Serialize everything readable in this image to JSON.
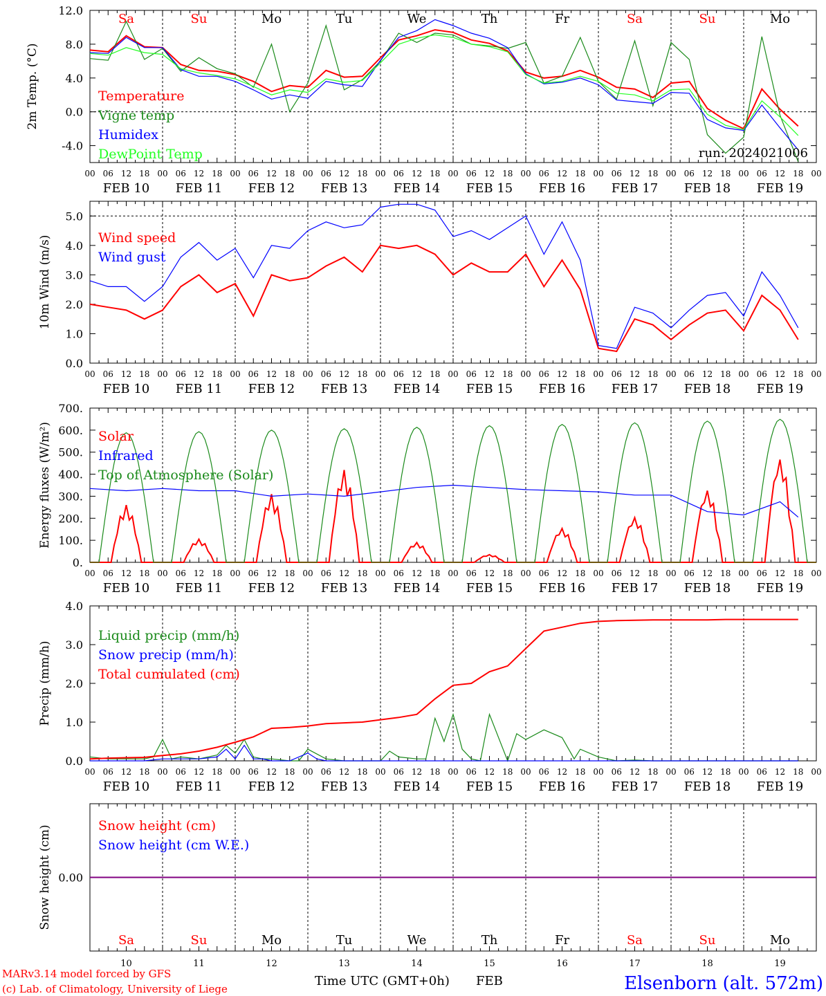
{
  "colors": {
    "red": "#ff0000",
    "green": "#1a8a1a",
    "blue": "#0000ff",
    "light_green": "#22ff22",
    "purple": "#800080",
    "black": "#000000"
  },
  "x_axis": {
    "hour_ticks": [
      "00",
      "06",
      "12",
      "18"
    ],
    "final_hour_tick": "00",
    "date_labels": [
      "FEB 10",
      "FEB 11",
      "FEB 12",
      "FEB 13",
      "FEB 14",
      "FEB 15",
      "FEB 16",
      "FEB 17",
      "FEB 18",
      "FEB 19"
    ],
    "day_names": [
      "Sa",
      "Su",
      "Mo",
      "Tu",
      "We",
      "Th",
      "Fr",
      "Sa",
      "Su",
      "Mo"
    ],
    "day_name_colors": [
      "red",
      "red",
      "black",
      "black",
      "black",
      "black",
      "black",
      "red",
      "red",
      "black"
    ],
    "day_numbers": [
      "10",
      "11",
      "12",
      "13",
      "14",
      "15",
      "16",
      "17",
      "18",
      "19"
    ],
    "title": "Time UTC (GMT+0h)",
    "month": "FEB"
  },
  "footer": {
    "model": "MARv3.14 model forced by GFS",
    "credit": "(c) Lab. of Climatology, University of Liege",
    "station": "Elsenborn (alt. 572m)"
  },
  "chart_data": [
    {
      "type": "line",
      "id": "temperature",
      "ylabel": "2m Temp. (°C)",
      "ylim": [
        -6,
        12
      ],
      "yticks": [
        "12.0",
        "8.0",
        "4.0",
        "0.0",
        "-4.0"
      ],
      "ytick_values": [
        12,
        8,
        4,
        0,
        -4
      ],
      "ref_lines": [
        0
      ],
      "run_label": "run: 2024021006",
      "x_unit": "hours since FEB 10 00 UTC",
      "series": [
        {
          "name": "Temperature",
          "color": "red",
          "x": [
            0,
            6,
            12,
            18,
            24,
            30,
            36,
            42,
            48,
            54,
            60,
            66,
            72,
            78,
            84,
            90,
            96,
            102,
            108,
            114,
            120,
            126,
            132,
            138,
            144,
            150,
            156,
            162,
            168,
            174,
            180,
            186,
            192,
            198,
            204,
            210,
            216,
            222,
            228,
            234
          ],
          "y": [
            7.3,
            7.1,
            9.0,
            7.7,
            7.6,
            5.6,
            4.9,
            4.8,
            4.4,
            3.6,
            2.4,
            3.1,
            2.9,
            4.9,
            4.1,
            4.2,
            6.4,
            8.5,
            9.0,
            9.7,
            9.4,
            8.5,
            8.1,
            7.2,
            4.7,
            4.0,
            4.2,
            4.9,
            4.1,
            2.9,
            2.7,
            1.7,
            3.4,
            3.6,
            0.4,
            -1.0,
            -2.0,
            2.7,
            0.3,
            -1.7
          ]
        },
        {
          "name": "Vigne temp",
          "color": "green",
          "x": [
            0,
            6,
            12,
            18,
            24,
            30,
            36,
            42,
            48,
            54,
            60,
            66,
            72,
            78,
            84,
            90,
            96,
            102,
            108,
            114,
            120,
            126,
            132,
            138,
            144,
            150,
            156,
            162,
            168,
            174,
            180,
            186,
            192,
            198,
            204,
            210,
            216,
            222,
            228,
            234
          ],
          "y": [
            6.3,
            6.1,
            10.7,
            6.2,
            7.5,
            4.8,
            6.4,
            5.1,
            4.5,
            2.9,
            8.0,
            0.0,
            3.4,
            10.2,
            2.6,
            3.8,
            6.0,
            9.3,
            8.2,
            9.3,
            9.1,
            8.0,
            7.8,
            7.5,
            8.2,
            3.4,
            4.2,
            8.8,
            3.6,
            1.5,
            8.4,
            0.7,
            8.2,
            6.2,
            -2.7,
            -4.9,
            -3.0,
            8.9,
            -0.4,
            -5.9
          ]
        },
        {
          "name": "Humidex",
          "color": "blue",
          "x": [
            0,
            6,
            12,
            18,
            24,
            30,
            36,
            42,
            48,
            54,
            60,
            66,
            72,
            78,
            84,
            90,
            96,
            102,
            108,
            114,
            120,
            126,
            132,
            138,
            144,
            150,
            156,
            162,
            168,
            174,
            180,
            186,
            192,
            198,
            204,
            210,
            216,
            222,
            228,
            234
          ],
          "y": [
            7.0,
            6.9,
            8.8,
            7.6,
            7.6,
            5.0,
            4.2,
            4.2,
            3.6,
            2.6,
            1.5,
            2.0,
            1.6,
            3.6,
            3.2,
            3.0,
            6.1,
            8.8,
            9.6,
            10.9,
            10.2,
            9.3,
            8.7,
            7.6,
            4.5,
            3.3,
            3.5,
            4.0,
            3.2,
            1.4,
            1.2,
            1.0,
            2.3,
            2.2,
            -0.9,
            -1.9,
            -2.2,
            0.8,
            -1.9,
            -4.5
          ]
        },
        {
          "name": "DewPoint Temp",
          "color": "light_green",
          "x": [
            0,
            6,
            12,
            18,
            24,
            30,
            36,
            42,
            48,
            54,
            60,
            66,
            72,
            78,
            84,
            90,
            96,
            102,
            108,
            114,
            120,
            126,
            132,
            138,
            144,
            150,
            156,
            162,
            168,
            174,
            180,
            186,
            192,
            198,
            204,
            210,
            216,
            222,
            228,
            234
          ],
          "y": [
            6.9,
            6.7,
            7.6,
            7.0,
            6.8,
            5.1,
            4.6,
            4.3,
            3.9,
            3.0,
            2.0,
            2.6,
            2.3,
            3.9,
            3.5,
            3.7,
            5.8,
            8.0,
            8.7,
            9.1,
            8.8,
            8.0,
            7.7,
            7.1,
            4.4,
            3.4,
            3.6,
            4.2,
            3.6,
            2.2,
            2.0,
            1.3,
            2.6,
            2.7,
            -0.3,
            -1.6,
            -2.1,
            1.3,
            -0.6,
            -2.8
          ]
        }
      ]
    },
    {
      "type": "line",
      "id": "wind",
      "ylabel": "10m Wind (m/s)",
      "ylim": [
        0,
        5.5
      ],
      "yticks": [
        "5.0",
        "4.0",
        "3.0",
        "2.0",
        "1.0",
        "0.0"
      ],
      "ytick_values": [
        5,
        4,
        3,
        2,
        1,
        0
      ],
      "ref_lines": [
        5
      ],
      "x_unit": "hours since FEB 10 00 UTC",
      "series": [
        {
          "name": "Wind speed",
          "color": "red",
          "x": [
            0,
            6,
            12,
            18,
            24,
            30,
            36,
            42,
            48,
            54,
            60,
            66,
            72,
            78,
            84,
            90,
            96,
            102,
            108,
            114,
            120,
            126,
            132,
            138,
            144,
            150,
            156,
            162,
            168,
            174,
            180,
            186,
            192,
            198,
            204,
            210,
            216,
            222,
            228,
            234
          ],
          "y": [
            2.0,
            1.9,
            1.8,
            1.5,
            1.8,
            2.6,
            3.0,
            2.4,
            2.7,
            1.6,
            3.0,
            2.8,
            2.9,
            3.3,
            3.6,
            3.1,
            4.0,
            3.9,
            4.0,
            3.7,
            3.0,
            3.4,
            3.1,
            3.1,
            3.7,
            2.6,
            3.5,
            2.5,
            0.5,
            0.4,
            1.5,
            1.3,
            0.8,
            1.3,
            1.7,
            1.8,
            1.1,
            2.3,
            1.8,
            0.8
          ]
        },
        {
          "name": "Wind gust",
          "color": "blue",
          "x": [
            0,
            6,
            12,
            18,
            24,
            30,
            36,
            42,
            48,
            54,
            60,
            66,
            72,
            78,
            84,
            90,
            96,
            102,
            108,
            114,
            120,
            126,
            132,
            138,
            144,
            150,
            156,
            162,
            168,
            174,
            180,
            186,
            192,
            198,
            204,
            210,
            216,
            222,
            228,
            234
          ],
          "y": [
            2.8,
            2.6,
            2.6,
            2.1,
            2.6,
            3.6,
            4.1,
            3.5,
            3.9,
            2.9,
            4.0,
            3.9,
            4.5,
            4.8,
            4.6,
            4.7,
            5.3,
            5.4,
            5.4,
            5.2,
            4.3,
            4.5,
            4.2,
            4.6,
            5.0,
            3.7,
            4.8,
            3.5,
            0.6,
            0.5,
            1.9,
            1.7,
            1.2,
            1.8,
            2.3,
            2.4,
            1.6,
            3.1,
            2.3,
            1.2
          ]
        }
      ]
    },
    {
      "type": "line",
      "id": "energy",
      "ylabel": "Energy fluxes (W/m²)",
      "ylim": [
        0,
        700
      ],
      "yticks": [
        "700.",
        "600.",
        "500.",
        "400.",
        "300.",
        "200.",
        "100.",
        "0."
      ],
      "ytick_values": [
        700,
        600,
        500,
        400,
        300,
        200,
        100,
        0
      ],
      "ref_lines": [],
      "x_unit": "hours since FEB 10 00 UTC",
      "series": [
        {
          "name": "Solar",
          "color": "red",
          "daily_peak": [
            260,
            105,
            310,
            420,
            90,
            35,
            155,
            205,
            330,
            475
          ]
        },
        {
          "name": "Infrared",
          "color": "blue",
          "x": [
            0,
            12,
            24,
            36,
            48,
            60,
            72,
            84,
            96,
            108,
            120,
            132,
            144,
            156,
            168,
            180,
            192,
            204,
            216,
            228,
            234
          ],
          "y": [
            335,
            325,
            335,
            325,
            325,
            300,
            310,
            300,
            320,
            340,
            350,
            340,
            330,
            325,
            320,
            305,
            305,
            230,
            215,
            275,
            205
          ]
        },
        {
          "name": "Top of Atmosphere (Solar)",
          "color": "green",
          "daily_peak": [
            588,
            593,
            600,
            606,
            613,
            620,
            626,
            633,
            641,
            649
          ]
        }
      ]
    },
    {
      "type": "line",
      "id": "precip",
      "ylabel": "Precip (mm/h)",
      "ylim": [
        0,
        4.0
      ],
      "yticks": [
        "4.0",
        "3.0",
        "2.0",
        "1.0",
        "0.0"
      ],
      "ytick_values": [
        4,
        3,
        2,
        1,
        0
      ],
      "ref_lines": [],
      "x_unit": "hours since FEB 10 00 UTC",
      "series": [
        {
          "name": "Liquid precip (mm/h)",
          "color": "green",
          "x": [
            0,
            6,
            12,
            18,
            21,
            24,
            27,
            30,
            36,
            42,
            45,
            48,
            51,
            54,
            57,
            60,
            66,
            69,
            72,
            78,
            84,
            90,
            96,
            99,
            102,
            108,
            111,
            114,
            117,
            120,
            123,
            126,
            129,
            132,
            138,
            141,
            144,
            150,
            156,
            160,
            162,
            168,
            174,
            180,
            186,
            192,
            198,
            204,
            216,
            234
          ],
          "y": [
            0.1,
            0.05,
            0.05,
            0.05,
            0.1,
            0.55,
            0.05,
            0.1,
            0.05,
            0.15,
            0.4,
            0.2,
            0.55,
            0.1,
            0.05,
            0.05,
            0.0,
            0.0,
            0.3,
            0.05,
            0.0,
            0.0,
            0.0,
            0.25,
            0.1,
            0.05,
            0.05,
            1.1,
            0.5,
            1.2,
            0.3,
            0.05,
            0.0,
            1.2,
            0.0,
            0.7,
            0.55,
            0.8,
            0.6,
            0.05,
            0.3,
            0.1,
            0.0,
            0.02,
            0.0,
            0.0,
            0.0,
            0.0,
            0.0,
            0.0
          ]
        },
        {
          "name": "Snow precip (mm/h)",
          "color": "blue",
          "x": [
            0,
            6,
            12,
            18,
            24,
            30,
            36,
            42,
            45,
            48,
            51,
            54,
            57,
            60,
            66,
            72,
            75,
            78,
            84,
            96,
            234
          ],
          "y": [
            0.0,
            0.0,
            0.0,
            0.0,
            0.05,
            0.05,
            0.05,
            0.1,
            0.3,
            0.05,
            0.4,
            0.05,
            0.05,
            0.0,
            0.0,
            0.2,
            0.05,
            0.0,
            0.0,
            0.0,
            0.0
          ]
        },
        {
          "name": "Total cumulated (cm)",
          "color": "red",
          "x": [
            0,
            6,
            12,
            18,
            24,
            30,
            36,
            42,
            48,
            54,
            60,
            66,
            72,
            78,
            84,
            90,
            96,
            102,
            108,
            114,
            120,
            126,
            132,
            138,
            144,
            150,
            156,
            162,
            168,
            174,
            180,
            186,
            192,
            198,
            204,
            210,
            216,
            222,
            228,
            234
          ],
          "y": [
            0.05,
            0.07,
            0.08,
            0.09,
            0.14,
            0.18,
            0.25,
            0.35,
            0.48,
            0.62,
            0.84,
            0.86,
            0.9,
            0.96,
            0.98,
            1.0,
            1.06,
            1.12,
            1.2,
            1.6,
            1.95,
            2.0,
            2.3,
            2.45,
            2.9,
            3.35,
            3.45,
            3.55,
            3.6,
            3.62,
            3.63,
            3.64,
            3.64,
            3.64,
            3.64,
            3.65,
            3.65,
            3.65,
            3.65,
            3.65
          ]
        }
      ]
    },
    {
      "type": "line",
      "id": "snow",
      "ylabel": "Snow height (cm)",
      "ylim": [
        -1,
        1
      ],
      "yticks": [
        "0.00"
      ],
      "ytick_values": [
        0
      ],
      "ref_lines": [],
      "x_unit": "hours since FEB 10 00 UTC",
      "series": [
        {
          "name": "Snow height (cm)",
          "color": "red",
          "x": [
            0,
            240
          ],
          "y": [
            0,
            0
          ]
        },
        {
          "name": "Snow height (cm W.E.)",
          "color": "blue",
          "x": [
            0,
            240
          ],
          "y": [
            0,
            0
          ]
        }
      ]
    }
  ]
}
